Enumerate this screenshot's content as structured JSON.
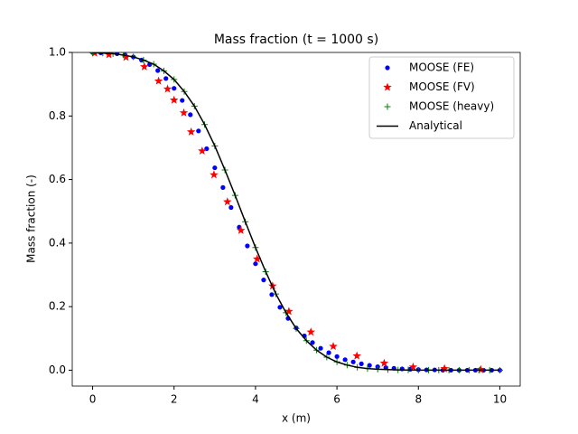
{
  "chart_data": {
    "type": "scatter-line",
    "title": "Mass fraction (t = 1000 s)",
    "x_label": "x (m)",
    "y_label": "Mass fraction (-)",
    "xlim": [
      -0.5,
      10.5
    ],
    "ylim": [
      -0.05,
      1.0
    ],
    "xticks": [
      0,
      2,
      4,
      6,
      8,
      10
    ],
    "yticks": [
      {
        "value": 0.0,
        "label": "0.0"
      },
      {
        "value": 0.2,
        "label": "0.2"
      },
      {
        "value": 0.4,
        "label": "0.4"
      },
      {
        "value": 0.6,
        "label": "0.6"
      },
      {
        "value": 0.8,
        "label": "0.8"
      },
      {
        "value": 1.0,
        "label": "1.0"
      }
    ],
    "legend": "upper right",
    "series": [
      {
        "name": "MOOSE (FE)",
        "color": "#0000ff",
        "marker": "dot",
        "x": [
          0,
          0.2,
          0.4,
          0.6,
          0.8,
          1.0,
          1.2,
          1.4,
          1.6,
          1.8,
          2.0,
          2.2,
          2.4,
          2.6,
          2.8,
          3.0,
          3.2,
          3.4,
          3.6,
          3.8,
          4.0,
          4.2,
          4.4,
          4.6,
          4.8,
          5.0,
          5.2,
          5.4,
          5.6,
          5.8,
          6.0,
          6.2,
          6.4,
          6.6,
          6.8,
          7.0,
          7.2,
          7.4,
          7.6,
          7.8,
          8.0,
          8.2,
          8.4,
          8.6,
          8.8,
          9.0,
          9.2,
          9.4,
          9.6,
          9.8,
          10.0
        ],
        "values": [
          1.0,
          0.999,
          0.998,
          0.996,
          0.992,
          0.986,
          0.976,
          0.962,
          0.943,
          0.918,
          0.887,
          0.849,
          0.804,
          0.753,
          0.697,
          0.637,
          0.575,
          0.512,
          0.45,
          0.391,
          0.335,
          0.284,
          0.238,
          0.198,
          0.163,
          0.133,
          0.108,
          0.087,
          0.069,
          0.055,
          0.043,
          0.033,
          0.026,
          0.02,
          0.015,
          0.011,
          0.008,
          0.006,
          0.004,
          0.003,
          0.002,
          0.001,
          0.001,
          0,
          0,
          0,
          0,
          0,
          0,
          0,
          0
        ]
      },
      {
        "name": "MOOSE (FV)",
        "color": "#ff0000",
        "marker": "star",
        "x": [
          0.05,
          0.4,
          0.82,
          1.27,
          1.62,
          1.84,
          2.0,
          2.24,
          2.42,
          2.69,
          2.98,
          3.31,
          3.64,
          4.04,
          4.42,
          4.82,
          5.36,
          5.91,
          6.49,
          7.16,
          7.87,
          8.64,
          9.53
        ],
        "values": [
          0.998,
          0.993,
          0.985,
          0.955,
          0.91,
          0.885,
          0.85,
          0.81,
          0.75,
          0.69,
          0.615,
          0.53,
          0.44,
          0.35,
          0.265,
          0.185,
          0.12,
          0.075,
          0.045,
          0.022,
          0.01,
          0.005,
          0.002
        ]
      },
      {
        "name": "MOOSE (heavy)",
        "color": "#008000",
        "marker": "plus",
        "x": [
          0,
          0.25,
          0.5,
          0.75,
          1.0,
          1.25,
          1.5,
          1.75,
          2.0,
          2.25,
          2.5,
          2.75,
          3.0,
          3.25,
          3.5,
          3.75,
          4.0,
          4.25,
          4.5,
          4.75,
          5.0,
          5.25,
          5.5,
          5.75,
          6.0,
          6.25,
          6.5,
          6.75,
          7.0,
          7.25,
          7.5,
          7.75,
          8.0,
          8.25,
          8.5,
          8.75,
          9.0,
          9.25,
          9.5,
          9.75,
          10.0
        ],
        "values": [
          0.999,
          0.998,
          0.996,
          0.992,
          0.986,
          0.976,
          0.963,
          0.942,
          0.915,
          0.877,
          0.831,
          0.773,
          0.706,
          0.63,
          0.55,
          0.467,
          0.386,
          0.31,
          0.24,
          0.181,
          0.131,
          0.093,
          0.063,
          0.041,
          0.026,
          0.016,
          0.009,
          0.005,
          0.003,
          0.002,
          0.001,
          0.001,
          0,
          0,
          0,
          0,
          0,
          0,
          0,
          0,
          0
        ]
      },
      {
        "name": "Analytical",
        "color": "#000000",
        "marker": "line",
        "x": [
          0,
          0.25,
          0.5,
          0.75,
          1.0,
          1.25,
          1.5,
          1.75,
          2.0,
          2.25,
          2.5,
          2.75,
          3.0,
          3.25,
          3.5,
          3.75,
          4.0,
          4.25,
          4.5,
          4.75,
          5.0,
          5.25,
          5.5,
          5.75,
          6.0,
          6.25,
          6.5,
          6.75,
          7.0,
          7.5,
          8.0,
          9.0,
          10.0
        ],
        "values": [
          0.999,
          0.998,
          0.996,
          0.992,
          0.986,
          0.976,
          0.963,
          0.942,
          0.915,
          0.877,
          0.831,
          0.773,
          0.706,
          0.63,
          0.55,
          0.467,
          0.386,
          0.31,
          0.24,
          0.181,
          0.131,
          0.093,
          0.063,
          0.041,
          0.026,
          0.016,
          0.009,
          0.005,
          0.003,
          0.001,
          0,
          0,
          0
        ]
      }
    ]
  }
}
